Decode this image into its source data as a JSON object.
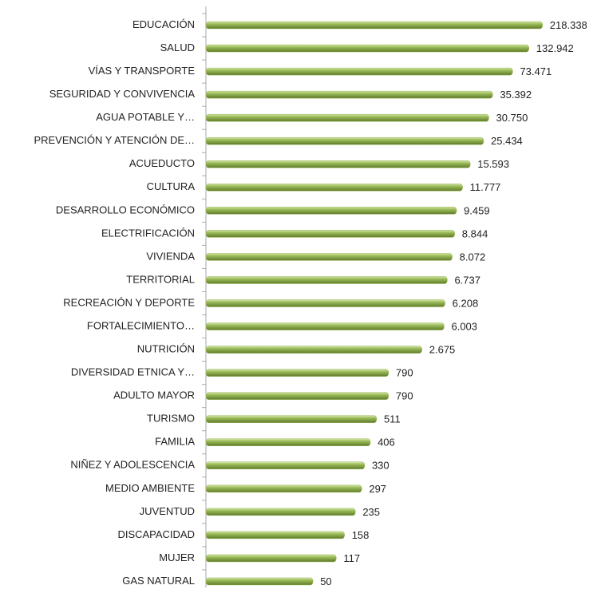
{
  "chart_data": {
    "type": "bar",
    "orientation": "horizontal",
    "log_scale": true,
    "color": "#9bbb59",
    "categories": [
      "EDUCACIÓN",
      "SALUD",
      "VÍAS Y TRANSPORTE",
      "SEGURIDAD Y CONVIVENCIA",
      "AGUA POTABLE Y…",
      "PREVENCIÓN Y ATENCIÓN DE…",
      "ACUEDUCTO",
      "CULTURA",
      "DESARROLLO ECONÓMICO",
      "ELECTRIFICACIÓN",
      "VIVIENDA",
      "TERRITORIAL",
      "RECREACIÓN Y DEPORTE",
      "FORTALECIMIENTO…",
      "NUTRICIÓN",
      "DIVERSIDAD ETNICA Y…",
      "ADULTO MAYOR",
      "TURISMO",
      "FAMILIA",
      "NIÑEZ Y ADOLESCENCIA",
      "MEDIO AMBIENTE",
      "JUVENTUD",
      "DISCAPACIDAD",
      "MUJER",
      "GAS NATURAL"
    ],
    "values": [
      218338,
      132942,
      73471,
      35392,
      30750,
      25434,
      15593,
      11777,
      9459,
      8844,
      8072,
      6737,
      6208,
      6003,
      2675,
      790,
      790,
      511,
      406,
      330,
      297,
      235,
      158,
      117,
      50
    ],
    "value_labels": [
      "218.338",
      "132.942",
      "73.471",
      "35.392",
      "30.750",
      "25.434",
      "15.593",
      "11.777",
      "9.459",
      "8.844",
      "8.072",
      "6.737",
      "6.208",
      "6.003",
      "2.675",
      "790",
      "790",
      "511",
      "406",
      "330",
      "297",
      "235",
      "158",
      "117",
      "50"
    ],
    "xlim": [
      1,
      1000000
    ]
  }
}
